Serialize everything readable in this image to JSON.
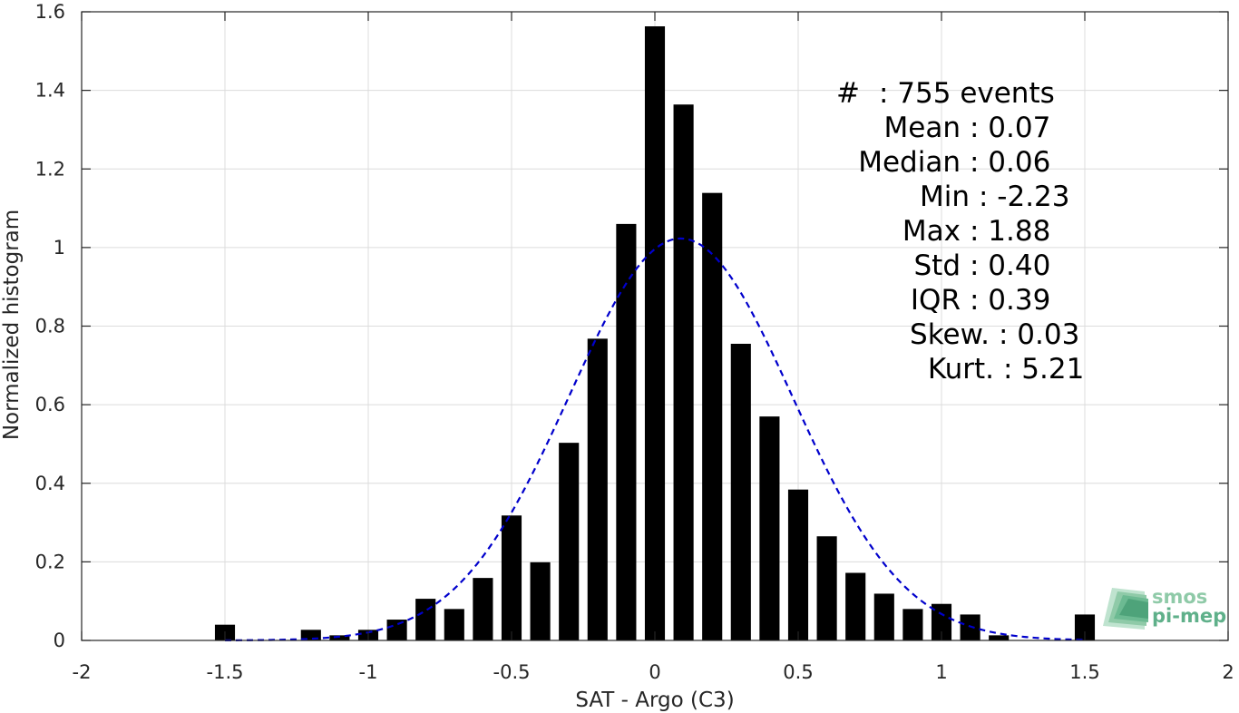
{
  "chart_data": {
    "type": "bar",
    "xlabel": "SAT - Argo (C3)",
    "ylabel": "Normalized histogram",
    "xlim": [
      -2,
      2
    ],
    "ylim": [
      0,
      1.6
    ],
    "grid": true,
    "x_ticks": [
      -2,
      -1.5,
      -1,
      -0.5,
      0,
      0.5,
      1,
      1.5,
      2
    ],
    "x_tick_labels": [
      "-2",
      "-1.5",
      "-1",
      "-0.5",
      "0",
      "0.5",
      "1",
      "1.5",
      "2"
    ],
    "y_ticks": [
      0,
      0.2,
      0.4,
      0.6,
      0.8,
      1,
      1.2,
      1.4,
      1.6
    ],
    "y_tick_labels": [
      "0",
      "0.2",
      "0.4",
      "0.6",
      "0.8",
      "1",
      "1.2",
      "1.4",
      "1.6"
    ],
    "bar_width": 0.07,
    "bar_color": "#000000",
    "bars": [
      {
        "x": -1.5,
        "y": 0.04
      },
      {
        "x": -1.2,
        "y": 0.027
      },
      {
        "x": -1.1,
        "y": 0.013
      },
      {
        "x": -1.0,
        "y": 0.027
      },
      {
        "x": -0.9,
        "y": 0.053
      },
      {
        "x": -0.8,
        "y": 0.106
      },
      {
        "x": -0.7,
        "y": 0.08
      },
      {
        "x": -0.6,
        "y": 0.159
      },
      {
        "x": -0.5,
        "y": 0.318
      },
      {
        "x": -0.4,
        "y": 0.199
      },
      {
        "x": -0.3,
        "y": 0.503
      },
      {
        "x": -0.2,
        "y": 0.768
      },
      {
        "x": -0.1,
        "y": 1.06
      },
      {
        "x": 0.0,
        "y": 1.563
      },
      {
        "x": 0.1,
        "y": 1.364
      },
      {
        "x": 0.2,
        "y": 1.139
      },
      {
        "x": 0.3,
        "y": 0.755
      },
      {
        "x": 0.4,
        "y": 0.57
      },
      {
        "x": 0.5,
        "y": 0.384
      },
      {
        "x": 0.6,
        "y": 0.265
      },
      {
        "x": 0.7,
        "y": 0.172
      },
      {
        "x": 0.8,
        "y": 0.119
      },
      {
        "x": 0.9,
        "y": 0.08
      },
      {
        "x": 1.0,
        "y": 0.093
      },
      {
        "x": 1.1,
        "y": 0.066
      },
      {
        "x": 1.2,
        "y": 0.013
      },
      {
        "x": 1.5,
        "y": 0.066
      }
    ],
    "fit_curve": {
      "type": "gaussian",
      "mean": 0.09,
      "sigma": 0.39,
      "peak": 1.023,
      "x_range": [
        -1.5,
        1.5
      ],
      "color": "#0000cc",
      "style": "dashed"
    },
    "stats": [
      {
        "label": "#",
        "value": ": 755 events"
      },
      {
        "label": "Mean",
        "value": ": 0.07"
      },
      {
        "label": "Median",
        "value": ": 0.06"
      },
      {
        "label": "Min",
        "value": ": -2.23"
      },
      {
        "label": "Max",
        "value": ": 1.88"
      },
      {
        "label": "Std",
        "value": ": 0.40"
      },
      {
        "label": "IQR",
        "value": ": 0.39"
      },
      {
        "label": "Skew.",
        "value": ": 0.03"
      },
      {
        "label": "Kurt.",
        "value": ": 5.21"
      }
    ],
    "logo": {
      "line1": "smos",
      "line2": "pi-mep",
      "color": "#5fb08a"
    }
  }
}
